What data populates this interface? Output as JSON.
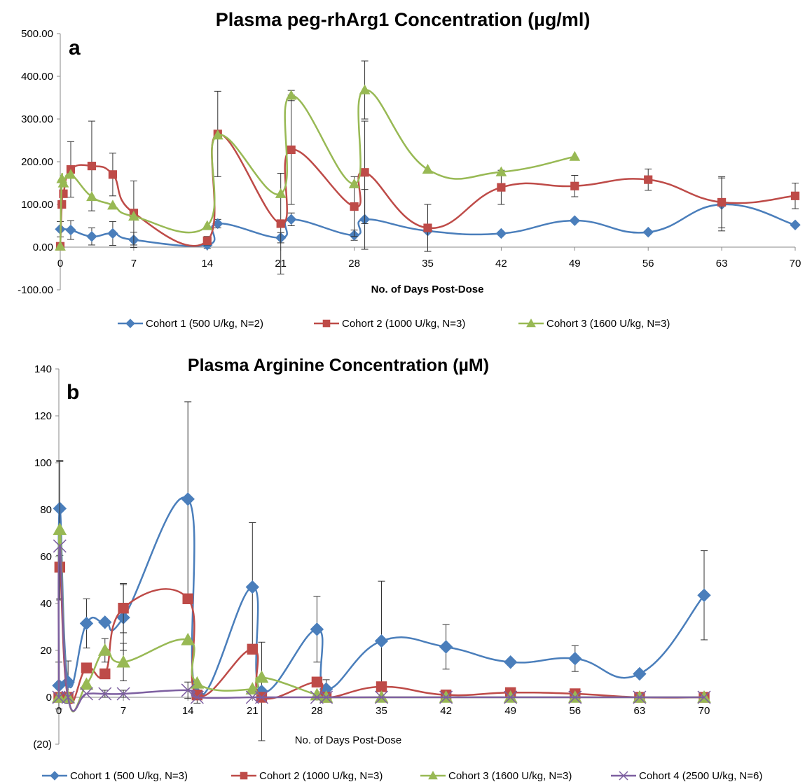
{
  "chart_data": [
    {
      "type": "line",
      "panel_label": "a",
      "title": "Plasma peg-rhArg1 Concentration (µg/ml)",
      "xlabel": "No. of Days Post-Dose",
      "ylabel": "",
      "xlim": [
        0,
        70
      ],
      "ylim": [
        -100,
        500
      ],
      "x_ticks": [
        "0",
        "7",
        "14",
        "21",
        "28",
        "35",
        "42",
        "49",
        "56",
        "63",
        "70"
      ],
      "y_ticks": [
        "-100.00",
        "0.00",
        "100.00",
        "200.00",
        "300.00",
        "400.00",
        "500.00"
      ],
      "y_tick_values": [
        -100,
        0,
        100,
        200,
        300,
        400,
        500
      ],
      "x_tick_values": [
        0,
        7,
        14,
        21,
        28,
        35,
        42,
        49,
        56,
        63,
        70
      ],
      "legend_position": "bottom",
      "series": [
        {
          "name": "Cohort 1 (500 U/kg, N=2)",
          "color": "#4a7ebb",
          "marker": "diamond",
          "x": [
            0,
            1,
            3,
            5,
            7,
            14,
            15,
            21,
            22,
            28,
            29,
            35,
            42,
            49,
            56,
            63,
            70
          ],
          "y": [
            42,
            40,
            25,
            32,
            17,
            5,
            55,
            22,
            65,
            28,
            65,
            38,
            32,
            62,
            35,
            100,
            52
          ],
          "err": [
            18,
            22,
            20,
            28,
            18,
            8,
            10,
            12,
            15,
            12,
            70,
            0,
            0,
            0,
            0,
            62,
            0
          ]
        },
        {
          "name": "Cohort 2 (1000 U/kg, N=3)",
          "color": "#be4b48",
          "marker": "square",
          "x": [
            0,
            0.15,
            0.3,
            1,
            3,
            5,
            7,
            14,
            15,
            21,
            22,
            28,
            29,
            35,
            42,
            49,
            56,
            63,
            70
          ],
          "y": [
            2,
            100,
            125,
            182,
            190,
            170,
            80,
            15,
            265,
            55,
            228,
            95,
            175,
            45,
            140,
            143,
            158,
            105,
            120
          ],
          "err": [
            0,
            0,
            0,
            65,
            105,
            50,
            75,
            10,
            100,
            118,
            128,
            70,
            120,
            55,
            40,
            25,
            25,
            60,
            30
          ]
        },
        {
          "name": "Cohort 3 (1600 U/kg, N=3)",
          "color": "#98b954",
          "marker": "triangle",
          "x": [
            0,
            0.15,
            0.3,
            1,
            3,
            5,
            7,
            14,
            15,
            21,
            22,
            28,
            29,
            35,
            42,
            49
          ],
          "y": [
            2,
            160,
            150,
            170,
            118,
            98,
            72,
            50,
            262,
            125,
            355,
            148,
            368,
            182,
            176,
            212
          ],
          "err": [
            0,
            0,
            0,
            0,
            0,
            0,
            0,
            0,
            0,
            0,
            12,
            0,
            68,
            0,
            0,
            0
          ]
        }
      ]
    },
    {
      "type": "line",
      "panel_label": "b",
      "title": "Plasma Arginine Concentration (µM)",
      "xlabel": "No. of Days Post-Dose",
      "ylabel": "",
      "xlim": [
        0,
        70
      ],
      "ylim": [
        -20,
        140
      ],
      "x_ticks": [
        "0",
        "7",
        "14",
        "21",
        "28",
        "35",
        "42",
        "49",
        "56",
        "63",
        "70"
      ],
      "x_tick_values": [
        0,
        7,
        14,
        21,
        28,
        35,
        42,
        49,
        56,
        63,
        70
      ],
      "y_ticks": [
        "(20)",
        "0",
        "20",
        "40",
        "60",
        "80",
        "100",
        "120",
        "140"
      ],
      "y_tick_values": [
        -20,
        0,
        20,
        40,
        60,
        80,
        100,
        120,
        140
      ],
      "legend_position": "bottom",
      "series": [
        {
          "name": "Cohort 1 (500 U/kg, N=3)",
          "color": "#4a7ebb",
          "marker": "diamond",
          "x": [
            0,
            0.1,
            1,
            3,
            5,
            7,
            14,
            15,
            21,
            22,
            28,
            29,
            35,
            42,
            49,
            56,
            63,
            70
          ],
          "y": [
            5,
            80.5,
            6.5,
            31.5,
            32,
            34,
            84.5,
            1.5,
            47,
            2.5,
            29,
            3.5,
            24,
            21.5,
            15,
            16.5,
            10,
            43.5
          ],
          "err": [
            10,
            20,
            9,
            10.5,
            0,
            14,
            41.5,
            4,
            27.5,
            21,
            14,
            4,
            25.5,
            9.5,
            0,
            5.5,
            0,
            19
          ]
        },
        {
          "name": "Cohort 2 (1000 U/kg, N=3)",
          "color": "#be4b48",
          "marker": "square",
          "x": [
            0,
            0.1,
            1,
            3,
            5,
            7,
            14,
            15,
            21,
            22,
            28,
            29,
            35,
            42,
            49,
            56,
            63,
            70
          ],
          "y": [
            0,
            55.5,
            0,
            12.5,
            10,
            38,
            42,
            1,
            20.5,
            0,
            6.5,
            0,
            4.5,
            1,
            2,
            1.5,
            0,
            0
          ],
          "err": [
            0,
            14,
            0,
            0,
            0,
            10.5,
            0,
            0,
            0,
            0,
            2,
            0,
            0,
            0,
            0,
            0,
            0,
            0
          ]
        },
        {
          "name": "Cohort 3 (1600 U/kg, N=3)",
          "color": "#98b954",
          "marker": "triangle",
          "x": [
            0,
            0.1,
            1,
            3,
            5,
            7,
            14,
            15,
            21,
            22,
            28,
            29,
            35,
            42,
            49,
            56,
            63,
            70
          ],
          "y": [
            0,
            71.5,
            0,
            5.5,
            20,
            15,
            24.5,
            6,
            3.5,
            8.5,
            1,
            0,
            0,
            0,
            0,
            0,
            0,
            0
          ],
          "err": [
            0,
            29.5,
            0,
            0,
            5,
            8,
            0,
            0,
            0,
            0,
            0,
            0,
            0,
            0,
            0,
            0,
            0,
            0
          ]
        },
        {
          "name": "Cohort 4 (2500 U/kg, N=6)",
          "color": "#7d5fa0",
          "marker": "x",
          "x": [
            0,
            0.1,
            1,
            3,
            5,
            7,
            14,
            15,
            21,
            22,
            28,
            29,
            35,
            42,
            49,
            56,
            63,
            70
          ],
          "y": [
            0,
            64.5,
            0,
            1.5,
            1.5,
            1.5,
            3,
            0,
            0,
            0,
            0,
            0,
            0,
            0,
            0,
            0,
            0,
            0
          ],
          "err": [
            0,
            0,
            0,
            0,
            1.5,
            1.5,
            3.5,
            0,
            0,
            0,
            0,
            0,
            0,
            0,
            0,
            0,
            0,
            0
          ]
        }
      ]
    }
  ]
}
